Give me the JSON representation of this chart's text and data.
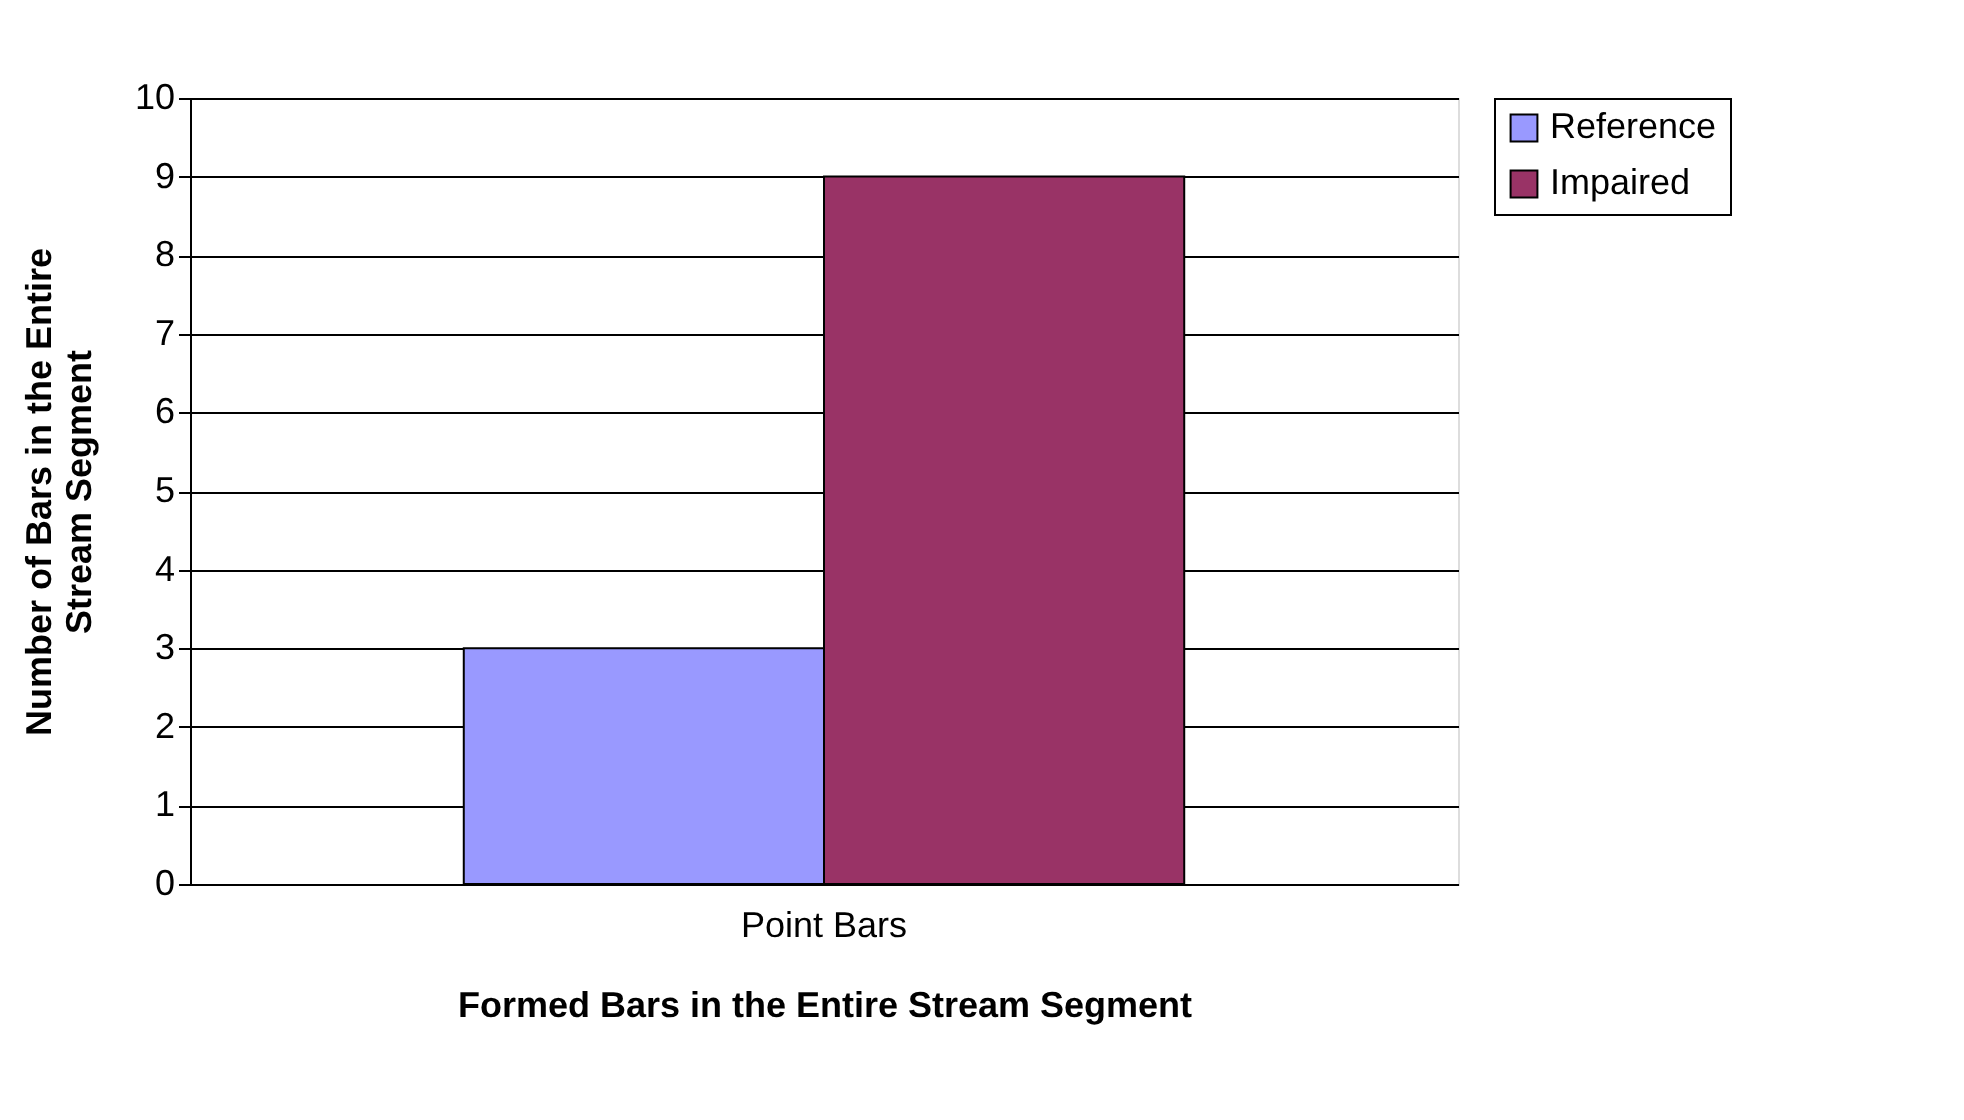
{
  "chart_data": {
    "type": "bar",
    "xlabel": "Formed Bars in the Entire Stream Segment",
    "ylabel": "Number of Bars in the Entire\nStream Segment",
    "categories": [
      "Point Bars"
    ],
    "series": [
      {
        "name": "Reference",
        "color": "#9999ff",
        "values": [
          3
        ]
      },
      {
        "name": "Impaired",
        "color": "#993366",
        "values": [
          9
        ]
      }
    ],
    "ylim": [
      0,
      10
    ],
    "yticks": [
      0,
      1,
      2,
      3,
      4,
      5,
      6,
      7,
      8,
      9,
      10
    ],
    "grid": "y",
    "legend": "right"
  }
}
